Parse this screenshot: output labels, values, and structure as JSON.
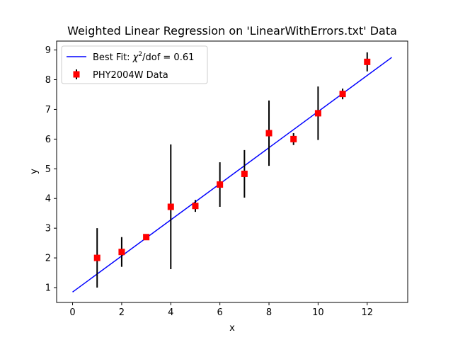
{
  "chart_data": {
    "type": "scatter",
    "title": "Weighted Linear Regression on 'LinearWithErrors.txt' Data",
    "xlabel": "x",
    "ylabel": "y",
    "xlim": [
      -0.65,
      13.65
    ],
    "ylim": [
      0.5,
      9.3
    ],
    "xticks": [
      0,
      2,
      4,
      6,
      8,
      10,
      12
    ],
    "yticks": [
      1,
      2,
      3,
      4,
      5,
      6,
      7,
      8,
      9
    ],
    "grid": false,
    "legend_position": "upper-left",
    "series": [
      {
        "name": "PHY2004W Data",
        "kind": "errorbar",
        "marker": "square",
        "color": "#ff0000",
        "error_color": "#000000",
        "x": [
          1,
          2,
          3,
          4,
          5,
          6,
          7,
          8,
          9,
          10,
          11,
          12
        ],
        "y": [
          2.0,
          2.2,
          2.7,
          3.72,
          3.75,
          4.47,
          4.83,
          6.2,
          6.0,
          6.87,
          7.52,
          8.6
        ],
        "yerr": [
          1.0,
          0.5,
          0.1,
          2.1,
          0.2,
          0.75,
          0.8,
          1.1,
          0.2,
          0.9,
          0.18,
          0.32
        ]
      },
      {
        "name": "Best Fit: χ²/dof = 0.61",
        "name_prefix": "Best Fit: ",
        "name_chi": "χ",
        "name_sup": "2",
        "name_suffix": "/dof = 0.61",
        "kind": "line",
        "color": "#0000ff",
        "x": [
          0,
          13
        ],
        "y": [
          0.85,
          8.75
        ]
      }
    ]
  }
}
